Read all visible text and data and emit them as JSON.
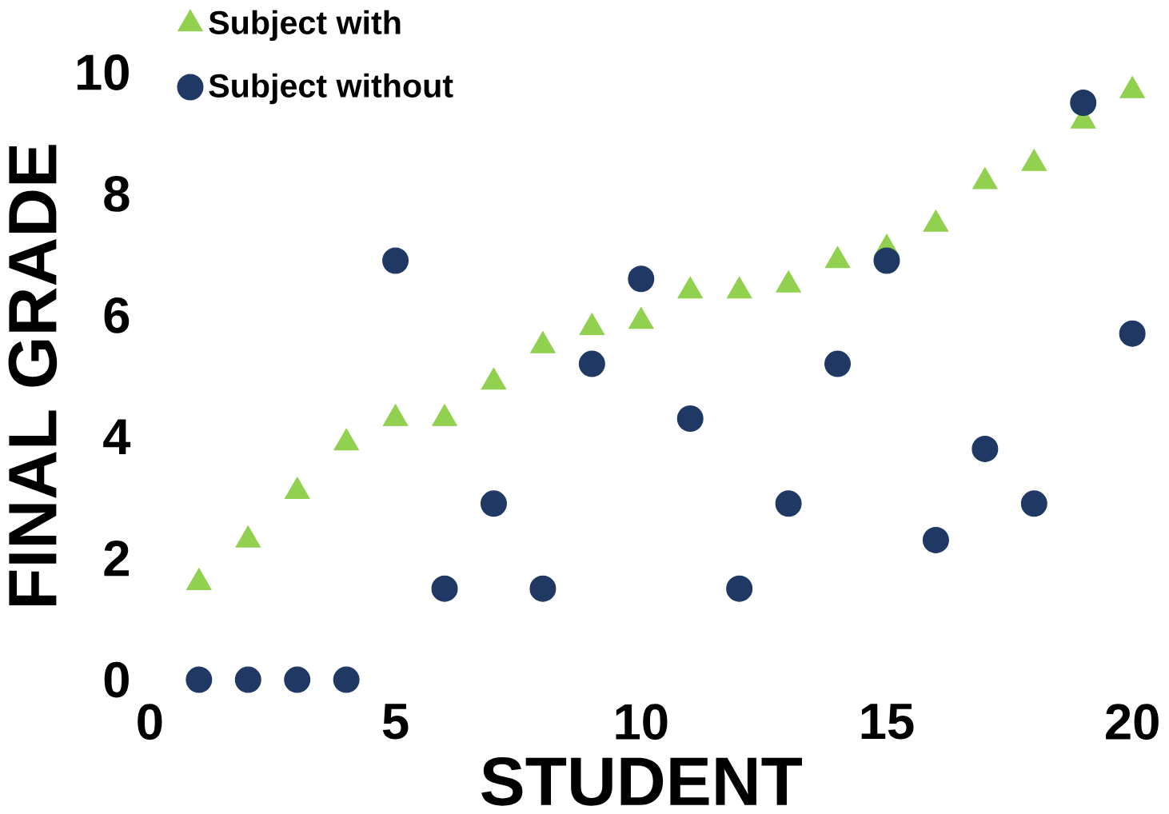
{
  "chart_data": {
    "type": "scatter",
    "xlabel": "STUDENT",
    "ylabel": "FINAL GRADE",
    "x": [
      1,
      2,
      3,
      4,
      5,
      6,
      7,
      8,
      9,
      10,
      11,
      12,
      13,
      14,
      15,
      16,
      17,
      18,
      19,
      20
    ],
    "series": [
      {
        "name": "Subject with",
        "color": "#92d050",
        "marker": "triangle",
        "values": [
          1.6,
          2.3,
          3.1,
          3.9,
          4.3,
          4.3,
          4.9,
          5.5,
          5.8,
          5.9,
          6.4,
          6.4,
          6.5,
          6.9,
          7.1,
          7.5,
          8.2,
          8.5,
          9.2,
          9.7
        ]
      },
      {
        "name": "Subject without",
        "color": "#1f3864",
        "marker": "circle",
        "values": [
          0,
          0,
          0,
          0,
          6.9,
          1.5,
          2.9,
          1.5,
          5.2,
          6.6,
          4.3,
          1.5,
          2.9,
          5.2,
          6.9,
          2.3,
          3.8,
          2.9,
          9.5,
          5.7
        ]
      }
    ],
    "xlim": [
      0,
      20
    ],
    "ylim": [
      0,
      10
    ],
    "xticks": [
      0,
      5,
      10,
      15,
      20
    ],
    "yticks": [
      0,
      2,
      4,
      6,
      8,
      10
    ],
    "grid": false,
    "legend": "top left"
  }
}
